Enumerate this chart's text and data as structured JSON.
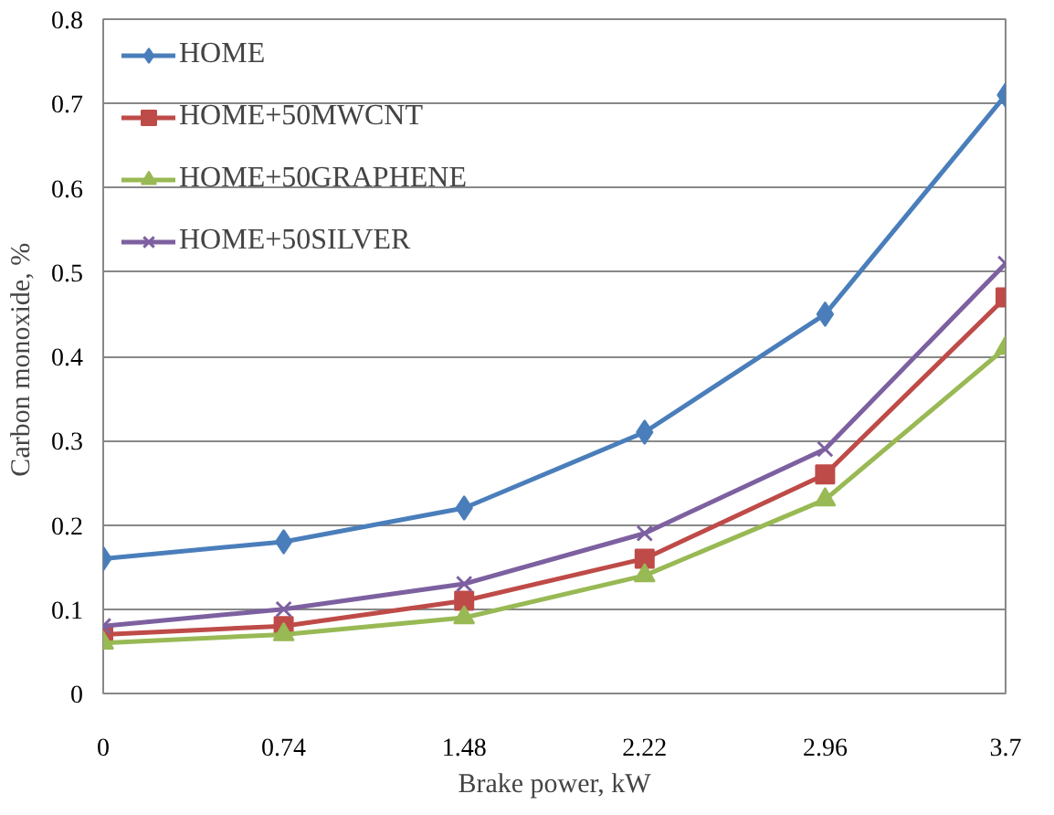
{
  "chart_data": {
    "type": "line",
    "xlabel": "Brake power, kW",
    "ylabel": "Carbon monoxide,  %",
    "x": [
      0,
      0.74,
      1.48,
      2.22,
      2.96,
      3.7
    ],
    "series": [
      {
        "name": "HOME",
        "color": "#4a7ebb",
        "marker": "diamond",
        "values": [
          0.16,
          0.18,
          0.22,
          0.31,
          0.45,
          0.71
        ]
      },
      {
        "name": "HOME+50MWCNT",
        "color": "#be4b48",
        "marker": "square",
        "values": [
          0.07,
          0.08,
          0.11,
          0.16,
          0.26,
          0.47
        ]
      },
      {
        "name": "HOME+50GRAPHENE",
        "color": "#98b954",
        "marker": "triangle",
        "values": [
          0.06,
          0.07,
          0.09,
          0.14,
          0.23,
          0.41
        ]
      },
      {
        "name": "HOME+50SILVER",
        "color": "#7d60a0",
        "marker": "cross",
        "values": [
          0.08,
          0.1,
          0.13,
          0.19,
          0.29,
          0.51
        ]
      }
    ],
    "xlim": [
      0,
      3.7
    ],
    "xticks": [
      0,
      0.74,
      1.48,
      2.22,
      2.96,
      3.7
    ],
    "ylim": [
      0,
      0.8
    ],
    "yticks": [
      0,
      0.1,
      0.2,
      0.3,
      0.4,
      0.5,
      0.6,
      0.7,
      0.8
    ],
    "grid": "y",
    "legend": "top left"
  }
}
